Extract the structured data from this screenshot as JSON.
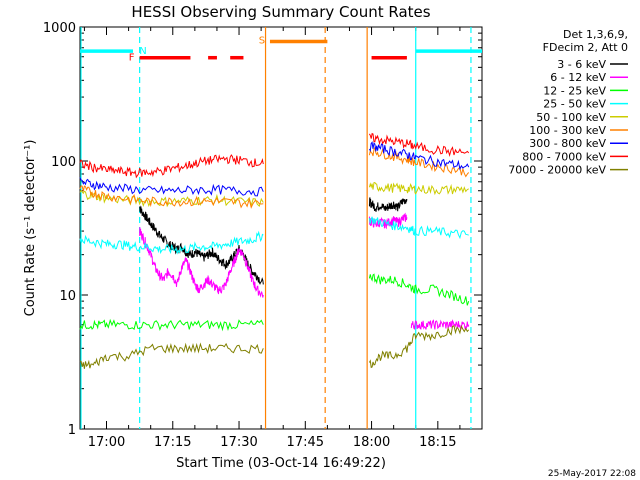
{
  "chart_data": {
    "type": "line",
    "title": "HESSI Observing Summary Count Rates",
    "xlabel": "Start Time (03-Oct-14 16:49:22)",
    "ylabel": "Count Rate (s⁻¹ detector⁻¹)",
    "yscale": "log",
    "ylim": [
      1,
      1000
    ],
    "xlim_minutes": [
      -6,
      85
    ],
    "x_tick_labels": [
      "17:00",
      "17:15",
      "17:30",
      "17:45",
      "18:00",
      "18:15"
    ],
    "x_tick_minutes": [
      0,
      15,
      30,
      45,
      60,
      75
    ],
    "y_tick_labels": [
      "1",
      "10",
      "100",
      "1000"
    ],
    "y_tick_values": [
      1,
      10,
      100,
      1000
    ],
    "legend_header": [
      "Det 1,3,6,9,",
      "FDecim 2, Att 0"
    ],
    "legend_position": "right",
    "series": [
      {
        "name": "3 - 6 keV",
        "color": "#000000",
        "segments": [
          {
            "x": [
              7.5,
              8,
              9,
              10,
              11,
              12,
              13,
              14,
              15,
              16,
              17,
              18,
              19,
              20,
              21,
              22,
              23,
              24,
              25,
              26,
              27,
              28,
              29,
              30,
              31,
              32,
              33,
              34,
              35.5
            ],
            "y": [
              45,
              42,
              38,
              34,
              31,
              28,
              26,
              24,
              23,
              22,
              23,
              21,
              20,
              21,
              20,
              19,
              20,
              21,
              19,
              18,
              17,
              18,
              20,
              22,
              20,
              17,
              15,
              14,
              12
            ]
          },
          {
            "x": [
              59.5,
              60,
              61,
              62,
              63,
              64,
              65,
              66,
              67,
              68
            ],
            "y": [
              50,
              48,
              45,
              47,
              44,
              46,
              48,
              45,
              50,
              52
            ]
          }
        ]
      },
      {
        "name": "6 - 12 keV",
        "color": "#ff00ff",
        "segments": [
          {
            "x": [
              7.5,
              8,
              9,
              10,
              11,
              12,
              13,
              14,
              15,
              16,
              17,
              18,
              19,
              20,
              21,
              22,
              23,
              24,
              25,
              26,
              27,
              28,
              29,
              30,
              31,
              32,
              33,
              34,
              35.5
            ],
            "y": [
              30,
              28,
              24,
              20,
              16,
              14,
              13,
              15,
              14,
              12,
              16,
              18,
              15,
              12,
              11,
              12,
              13,
              12,
              11,
              11,
              12,
              15,
              18,
              22,
              20,
              16,
              13,
              11,
              10
            ]
          },
          {
            "x": [
              59.5,
              60,
              61,
              62,
              63,
              64,
              65,
              66,
              67,
              68
            ],
            "y": [
              36,
              35,
              34,
              35,
              34,
              35,
              36,
              35,
              37,
              38
            ]
          },
          {
            "x": [
              69,
              70,
              72,
              74,
              76,
              78,
              80,
              82
            ],
            "y": [
              6,
              6,
              6,
              6,
              6,
              6,
              6,
              6
            ]
          }
        ]
      },
      {
        "name": "12 - 25 keV",
        "color": "#00ff00",
        "segments": [
          {
            "x": [
              -6,
              -3,
              0,
              5,
              10,
              15,
              20,
              25,
              30,
              35.5
            ],
            "y": [
              6,
              6,
              6,
              6,
              6,
              6,
              6,
              6,
              6,
              6
            ]
          },
          {
            "x": [
              59.5,
              62,
              65,
              68,
              70,
              74,
              78,
              82
            ],
            "y": [
              14,
              13,
              13,
              12,
              11,
              11,
              10,
              9
            ]
          }
        ]
      },
      {
        "name": "25 - 50 keV",
        "color": "#00ffff",
        "segments": [
          {
            "x": [
              -6,
              -3,
              0,
              3,
              6,
              9,
              12,
              15,
              18,
              21,
              24,
              27,
              30,
              33,
              35.5
            ],
            "y": [
              26,
              25,
              24,
              24,
              23,
              23,
              22,
              22,
              22,
              23,
              23,
              24,
              25,
              26,
              28
            ]
          },
          {
            "x": [
              59.5,
              62,
              65,
              68,
              70,
              74,
              78,
              82
            ],
            "y": [
              37,
              35,
              33,
              32,
              30,
              30,
              29,
              28
            ]
          }
        ]
      },
      {
        "name": "50 - 100 keV",
        "color": "#cccc00",
        "segments": [
          {
            "x": [
              -6,
              -3,
              0,
              5,
              10,
              15,
              20,
              25,
              30,
              35.5
            ],
            "y": [
              58,
              55,
              53,
              51,
              50,
              50,
              51,
              51,
              50,
              49
            ]
          },
          {
            "x": [
              59.5,
              62,
              65,
              68,
              70,
              74,
              78,
              82
            ],
            "y": [
              65,
              64,
              63,
              62,
              62,
              61,
              61,
              62
            ]
          }
        ]
      },
      {
        "name": "100 - 300 keV",
        "color": "#ff8000",
        "segments": [
          {
            "x": [
              -6,
              -3,
              0,
              5,
              10,
              15,
              20,
              25,
              30,
              35.5
            ],
            "y": [
              62,
              58,
              55,
              52,
              50,
              50,
              50,
              50,
              49,
              48
            ]
          },
          {
            "x": [
              59.5,
              62,
              65,
              68,
              70,
              74,
              78,
              82
            ],
            "y": [
              120,
              115,
              108,
              103,
              98,
              92,
              88,
              82
            ]
          }
        ]
      },
      {
        "name": "300 - 800 keV",
        "color": "#0000ff",
        "segments": [
          {
            "x": [
              -6,
              -3,
              0,
              5,
              10,
              15,
              20,
              25,
              30,
              35.5
            ],
            "y": [
              70,
              67,
              64,
              62,
              60,
              60,
              61,
              61,
              60,
              59
            ]
          },
          {
            "x": [
              59.5,
              62,
              65,
              68,
              70,
              74,
              78,
              82
            ],
            "y": [
              130,
              125,
              118,
              112,
              106,
              100,
              95,
              90
            ]
          }
        ]
      },
      {
        "name": "800 - 7000 keV",
        "color": "#ff0000",
        "segments": [
          {
            "x": [
              -6,
              -3,
              0,
              3,
              6,
              9,
              12,
              15,
              18,
              21,
              24,
              27,
              30,
              33,
              35.5
            ],
            "y": [
              95,
              90,
              86,
              84,
              82,
              82,
              84,
              88,
              92,
              98,
              102,
              104,
              102,
              98,
              95
            ]
          },
          {
            "x": [
              59.5,
              62,
              65,
              68,
              70,
              74,
              78,
              82
            ],
            "y": [
              150,
              145,
              140,
              135,
              128,
              122,
              118,
              115
            ]
          }
        ]
      },
      {
        "name": "7000 - 20000 keV",
        "color": "#808000",
        "segments": [
          {
            "x": [
              -6,
              -3,
              0,
              5,
              10,
              15,
              20,
              25,
              30,
              35.5
            ],
            "y": [
              3,
              3,
              3.5,
              3.5,
              4,
              4,
              4,
              4,
              4,
              4
            ]
          },
          {
            "x": [
              59.5,
              62,
              65,
              68,
              70,
              74,
              78,
              82
            ],
            "y": [
              3,
              3.5,
              3.5,
              4,
              5,
              5,
              5.5,
              5.5
            ]
          }
        ]
      }
    ],
    "flag_bars": [
      {
        "label": "N",
        "color": "#00ffff",
        "segments": [
          [
            -6,
            6
          ],
          [
            70,
            85
          ]
        ],
        "level": 660
      },
      {
        "label": "F",
        "color": "#ff0000",
        "segments": [
          [
            7.5,
            19
          ],
          [
            23,
            25
          ],
          [
            28,
            31
          ],
          [
            60,
            68
          ]
        ],
        "level": 590
      },
      {
        "label": "S",
        "color": "#ff8000",
        "segments": [
          [
            37,
            50
          ]
        ],
        "level": 780
      }
    ],
    "vertical_markers": [
      {
        "color": "#00ffff",
        "style": "solid",
        "x": -6
      },
      {
        "color": "#00ffff",
        "style": "dashed",
        "x": 7.5
      },
      {
        "color": "#ff8000",
        "style": "solid",
        "x": 36
      },
      {
        "color": "#ff8000",
        "style": "dashed",
        "x": 49.5
      },
      {
        "color": "#ff8000",
        "style": "solid",
        "x": 59
      },
      {
        "color": "#00ffff",
        "style": "solid",
        "x": 70
      },
      {
        "color": "#00ffff",
        "style": "dashed",
        "x": 82.5
      }
    ],
    "footer_date": "25-May-2017 22:08"
  }
}
